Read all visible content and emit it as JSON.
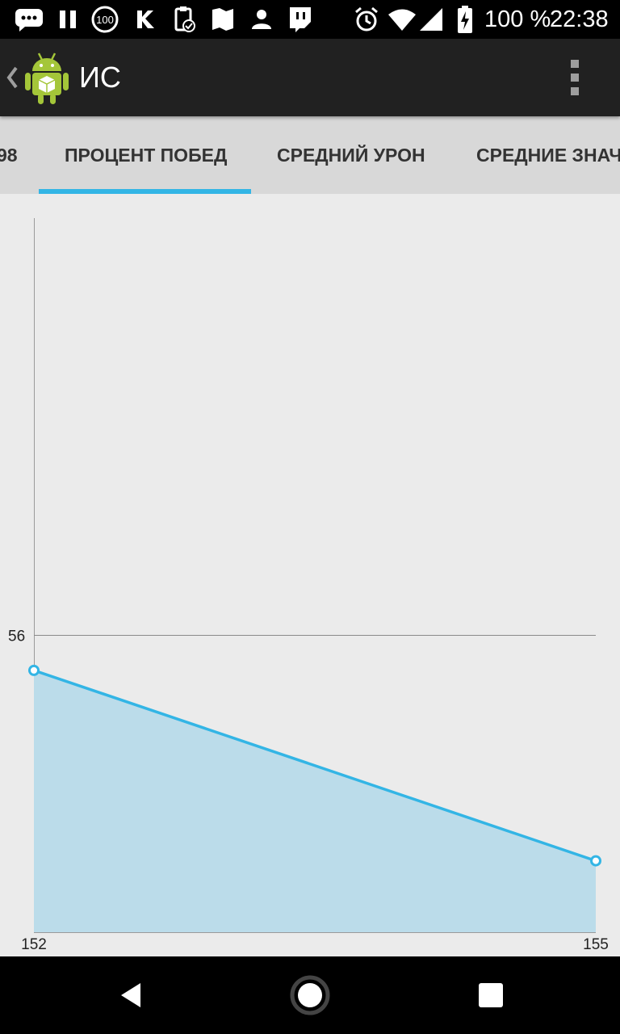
{
  "status_bar": {
    "battery_text": "100 %",
    "time": "22:38",
    "icons": [
      "messages-icon",
      "pause-icon",
      "badge-100-icon",
      "vk-icon",
      "clipboard-icon",
      "map-icon",
      "person-icon",
      "twitch-icon",
      "alarm-icon",
      "wifi-icon",
      "signal-icon",
      "battery-charging-icon"
    ],
    "badge_text": "100"
  },
  "app_bar": {
    "title": "ИС",
    "icons": [
      "back-chevron-icon",
      "android-logo-icon",
      "overflow-menu-icon"
    ]
  },
  "tabs": [
    {
      "label": "98",
      "active": false
    },
    {
      "label": "ПРОЦЕНТ ПОБЕД",
      "active": true
    },
    {
      "label": "СРЕДНИЙ УРОН",
      "active": false
    },
    {
      "label": "СРЕДНИЕ ЗНАЧ",
      "active": false
    }
  ],
  "colors": {
    "accent": "#33b5e5",
    "fill": "#bbdcea",
    "background": "#ebebeb",
    "tab_bar": "#d8d8d8",
    "app_bar": "#212121"
  },
  "chart_data": {
    "type": "area",
    "title": "",
    "xlabel": "",
    "ylabel": "",
    "x": [
      152,
      155
    ],
    "series": [
      {
        "values": [
          55.7,
          54.1
        ]
      }
    ],
    "xlim": [
      152,
      155
    ],
    "ylim": [
      53.5,
      59.5
    ],
    "y_ticks": [
      56
    ],
    "x_tick_labels": [
      "152",
      "155"
    ],
    "y_tick_labels": [
      "56"
    ],
    "grid": "horizontal line at 56"
  },
  "nav_bar": {
    "icons": [
      "back-triangle-icon",
      "home-circle-icon",
      "recents-square-icon"
    ]
  }
}
